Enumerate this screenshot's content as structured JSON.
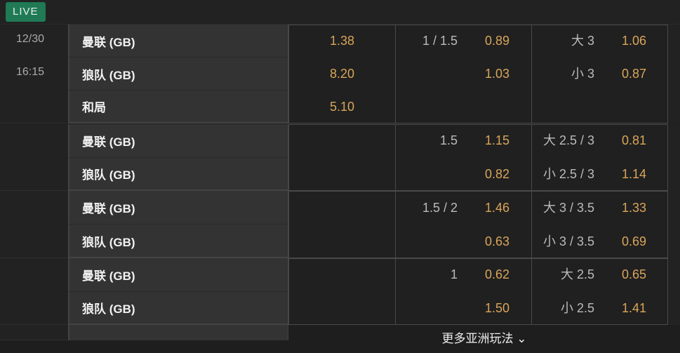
{
  "live_label": "LIVE",
  "match": {
    "date": "12/30",
    "time": "16:15"
  },
  "groups": [
    {
      "rows": [
        {
          "team": "曼联 (GB)",
          "x12": "1.38",
          "hdp_line": "1 / 1.5",
          "hdp_odds": "0.89",
          "ou_line": "大 3",
          "ou_odds": "1.06"
        },
        {
          "team": "狼队 (GB)",
          "x12": "8.20",
          "hdp_line": "",
          "hdp_odds": "1.03",
          "ou_line": "小 3",
          "ou_odds": "0.87"
        },
        {
          "team": "和局",
          "x12": "5.10",
          "hdp_line": "",
          "hdp_odds": "",
          "ou_line": "",
          "ou_odds": ""
        }
      ]
    },
    {
      "rows": [
        {
          "team": "曼联 (GB)",
          "x12": "",
          "hdp_line": "1.5",
          "hdp_odds": "1.15",
          "ou_line": "大 2.5 / 3",
          "ou_odds": "0.81"
        },
        {
          "team": "狼队 (GB)",
          "x12": "",
          "hdp_line": "",
          "hdp_odds": "0.82",
          "ou_line": "小 2.5 / 3",
          "ou_odds": "1.14"
        }
      ]
    },
    {
      "rows": [
        {
          "team": "曼联 (GB)",
          "x12": "",
          "hdp_line": "1.5 / 2",
          "hdp_odds": "1.46",
          "ou_line": "大 3 / 3.5",
          "ou_odds": "1.33"
        },
        {
          "team": "狼队 (GB)",
          "x12": "",
          "hdp_line": "",
          "hdp_odds": "0.63",
          "ou_line": "小 3 / 3.5",
          "ou_odds": "0.69"
        }
      ]
    },
    {
      "rows": [
        {
          "team": "曼联 (GB)",
          "x12": "",
          "hdp_line": "1",
          "hdp_odds": "0.62",
          "ou_line": "大 2.5",
          "ou_odds": "0.65"
        },
        {
          "team": "狼队 (GB)",
          "x12": "",
          "hdp_line": "",
          "hdp_odds": "1.50",
          "ou_line": "小 2.5",
          "ou_odds": "1.41"
        }
      ]
    }
  ],
  "more_label": "更多亚洲玩法 ⌄",
  "colors": {
    "odds": "#d9a55a",
    "live": "#1f7a55"
  }
}
